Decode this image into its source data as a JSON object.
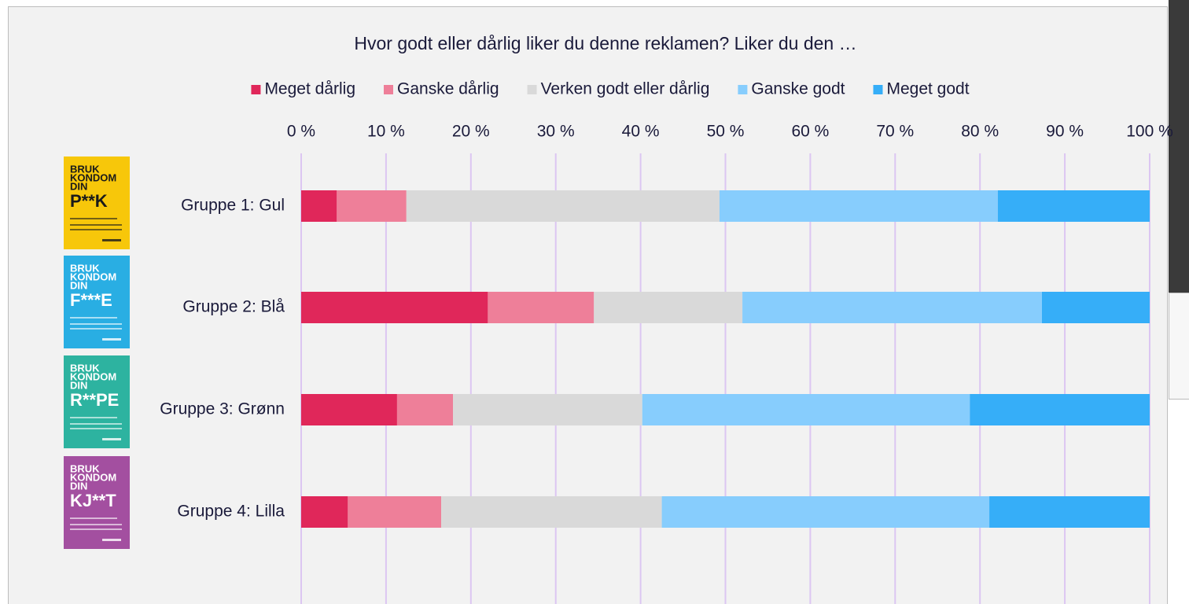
{
  "chart_data": {
    "type": "bar",
    "orientation": "horizontal",
    "stacked": true,
    "title": "Hvor godt eller dårlig liker du denne reklamen? Liker du den …",
    "categories": [
      "Gruppe 1: Gul",
      "Gruppe 2: Blå",
      "Gruppe 3: Grønn",
      "Gruppe 4: Lilla"
    ],
    "series": [
      {
        "name": "Meget dårlig",
        "color": "#e0275a",
        "values": [
          4.2,
          22.0,
          11.3,
          5.5
        ]
      },
      {
        "name": "Ganske dårlig",
        "color": "#ee7f99",
        "values": [
          8.2,
          12.5,
          6.6,
          11.0
        ]
      },
      {
        "name": "Verken godt eller dårlig",
        "color": "#d9d9d9",
        "values": [
          36.9,
          17.5,
          22.3,
          26.0
        ]
      },
      {
        "name": "Ganske godt",
        "color": "#87cdfd",
        "values": [
          32.8,
          35.3,
          38.6,
          38.6
        ]
      },
      {
        "name": "Meget godt",
        "color": "#36aef8",
        "values": [
          17.9,
          12.7,
          21.2,
          18.9
        ]
      }
    ],
    "xlim": [
      0,
      100
    ],
    "xticks": [
      {
        "value": 0,
        "label": "0 %"
      },
      {
        "value": 10,
        "label": "10 %"
      },
      {
        "value": 20,
        "label": "20 %"
      },
      {
        "value": 30,
        "label": "30 %"
      },
      {
        "value": 40,
        "label": "40 %"
      },
      {
        "value": 50,
        "label": "50 %"
      },
      {
        "value": 60,
        "label": "60 %"
      },
      {
        "value": 70,
        "label": "70 %"
      },
      {
        "value": 80,
        "label": "80 %"
      },
      {
        "value": 90,
        "label": "90 %"
      },
      {
        "value": 100,
        "label": "100 %"
      }
    ],
    "grid": true,
    "grid_color": "#dcc6f2",
    "legend": "top",
    "posters": [
      {
        "color": "#f7c70a",
        "text_color": "#1a1a1a",
        "lines": [
          "BRUK",
          "KONDOM",
          "DIN",
          "P**K"
        ]
      },
      {
        "color": "#29aee3",
        "text_color": "#ffffff",
        "lines": [
          "BRUK",
          "KONDOM",
          "DIN",
          "F***E"
        ]
      },
      {
        "color": "#2db3a0",
        "text_color": "#ffffff",
        "lines": [
          "BRUK",
          "KONDOM",
          "DIN",
          "R**PE"
        ]
      },
      {
        "color": "#a34fa0",
        "text_color": "#ffffff",
        "lines": [
          "BRUK",
          "KONDOM",
          "DIN",
          "KJ**T"
        ]
      }
    ]
  }
}
